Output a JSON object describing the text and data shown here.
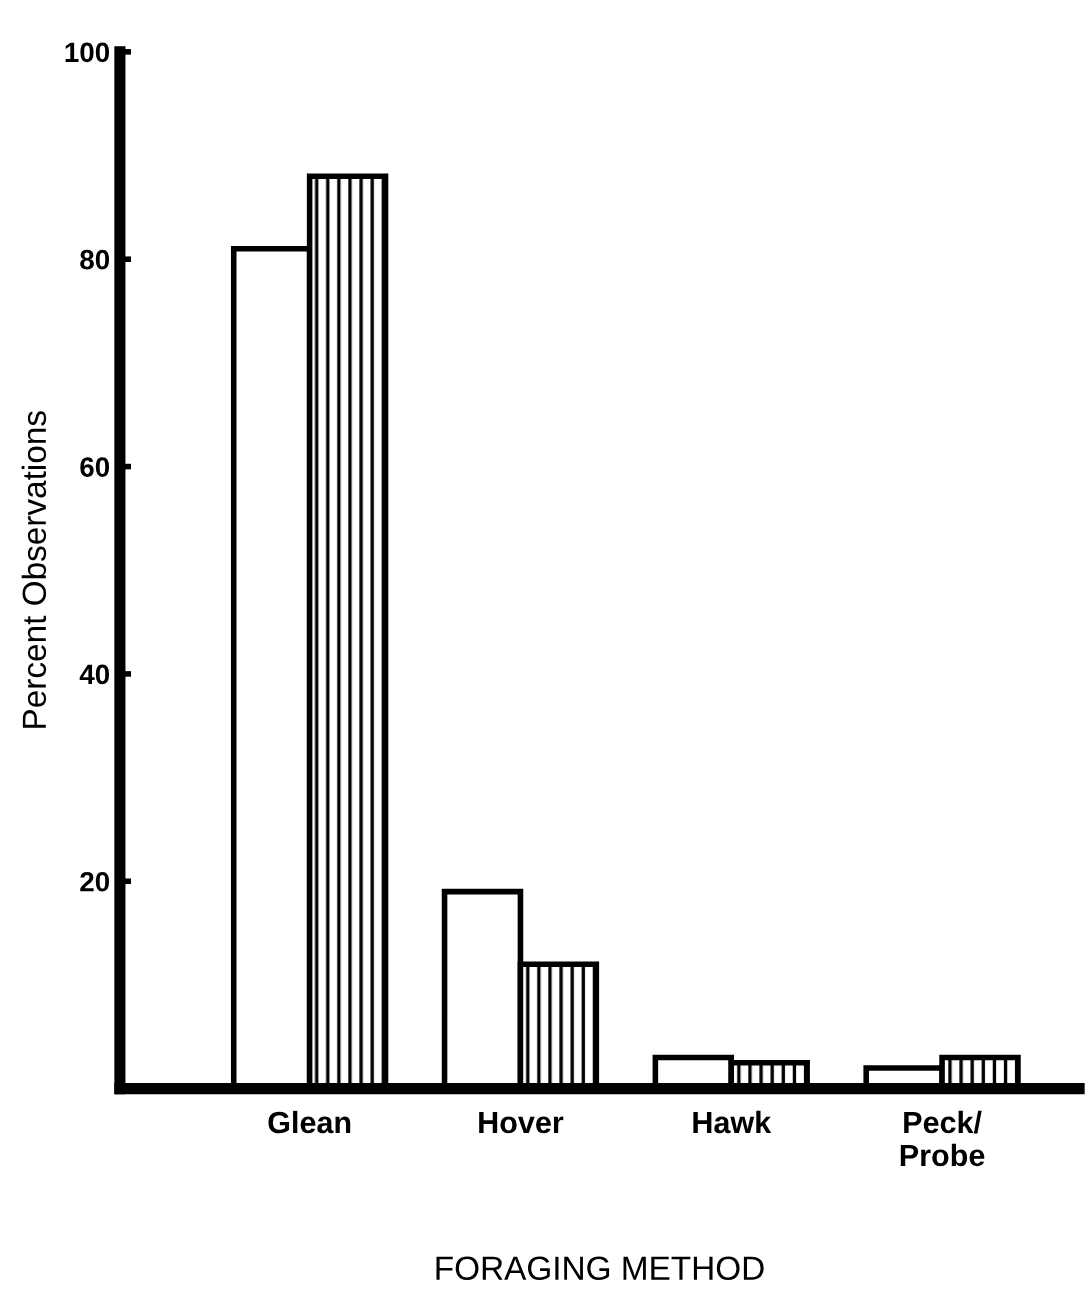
{
  "chart_data": {
    "type": "bar",
    "xlabel": "FORAGING METHOD",
    "ylabel": "Percent Observations",
    "categories": [
      "Glean",
      "Hover",
      "Hawk",
      "Peck/\nProbe"
    ],
    "series": [
      {
        "color": "#ffffff",
        "values": [
          81,
          19,
          3,
          2
        ]
      },
      {
        "color": "#000000",
        "values": [
          88,
          12,
          2.5,
          3
        ]
      }
    ],
    "ylim": [
      0,
      100
    ],
    "yticks": [
      20,
      40,
      60,
      80,
      100
    ],
    "grid": false,
    "legend": false
  }
}
